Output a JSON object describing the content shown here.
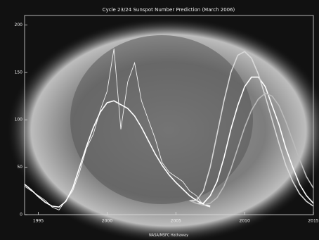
{
  "chart_data": {
    "type": "line",
    "title": "Cycle 23/24 Sunspot Number Prediction (March 2006)",
    "xlabel": "NASA/MSFC Hathaway",
    "x": [
      1994,
      1994.5,
      1995,
      1995.5,
      1996,
      1996.5,
      1997,
      1997.5,
      1998,
      1998.5,
      1999,
      1999.5,
      2000,
      2000.5,
      2001,
      2001.5,
      2002,
      2002.5,
      2003,
      2003.5,
      2004,
      2004.5,
      2005,
      2005.5,
      2006,
      2006.5,
      2007,
      2007.5,
      2008,
      2008.5,
      2009,
      2009.5,
      2010,
      2010.5,
      2011,
      2011.5,
      2012,
      2012.5,
      2013,
      2013.5,
      2014,
      2014.5,
      2015
    ],
    "series": [
      {
        "color": "#f2f2f2",
        "values": [
          30,
          25,
          20,
          15,
          8,
          5,
          15,
          25,
          45,
          70,
          85,
          110,
          130,
          175,
          90,
          140,
          160,
          120,
          100,
          80,
          55,
          45,
          40,
          35,
          25,
          20,
          10,
          8,
          null,
          null,
          null,
          null,
          null,
          null,
          null,
          null,
          null,
          null,
          null,
          null,
          null,
          null,
          null
        ]
      },
      {
        "color": "#ffffff",
        "values": [
          32,
          26,
          19,
          13,
          9,
          8,
          14,
          28,
          50,
          72,
          92,
          108,
          118,
          120,
          116,
          112,
          104,
          92,
          78,
          64,
          52,
          42,
          34,
          27,
          20,
          15,
          11,
          9,
          null,
          null,
          null,
          null,
          null,
          null,
          null,
          null,
          null,
          null,
          null,
          null,
          null,
          null,
          null
        ]
      },
      {
        "color": "#ffffff",
        "values": [
          null,
          null,
          null,
          null,
          null,
          null,
          null,
          null,
          null,
          null,
          null,
          null,
          null,
          null,
          null,
          null,
          null,
          null,
          null,
          null,
          null,
          null,
          null,
          null,
          15,
          12,
          12,
          20,
          35,
          60,
          90,
          115,
          135,
          145,
          145,
          135,
          115,
          95,
          70,
          50,
          32,
          20,
          12
        ]
      },
      {
        "color": "#d8d8d8",
        "values": [
          null,
          null,
          null,
          null,
          null,
          null,
          null,
          null,
          null,
          null,
          null,
          null,
          null,
          null,
          null,
          null,
          null,
          null,
          null,
          null,
          null,
          null,
          null,
          null,
          15,
          15,
          25,
          50,
          85,
          120,
          150,
          168,
          172,
          165,
          148,
          125,
          100,
          75,
          52,
          35,
          22,
          14,
          9
        ]
      },
      {
        "color": "#bbbbbb",
        "values": [
          null,
          null,
          null,
          null,
          null,
          null,
          null,
          null,
          null,
          null,
          null,
          null,
          null,
          null,
          null,
          null,
          null,
          null,
          null,
          null,
          null,
          null,
          null,
          null,
          15,
          12,
          10,
          12,
          18,
          30,
          48,
          70,
          92,
          110,
          122,
          128,
          125,
          115,
          98,
          78,
          58,
          40,
          28
        ]
      }
    ],
    "xlim": [
      1994,
      2015
    ],
    "xticks": [
      1995,
      2000,
      2005,
      2010,
      2015
    ],
    "ylim": [
      0,
      210
    ],
    "yticks": [
      0,
      50,
      100,
      150,
      200
    ]
  }
}
